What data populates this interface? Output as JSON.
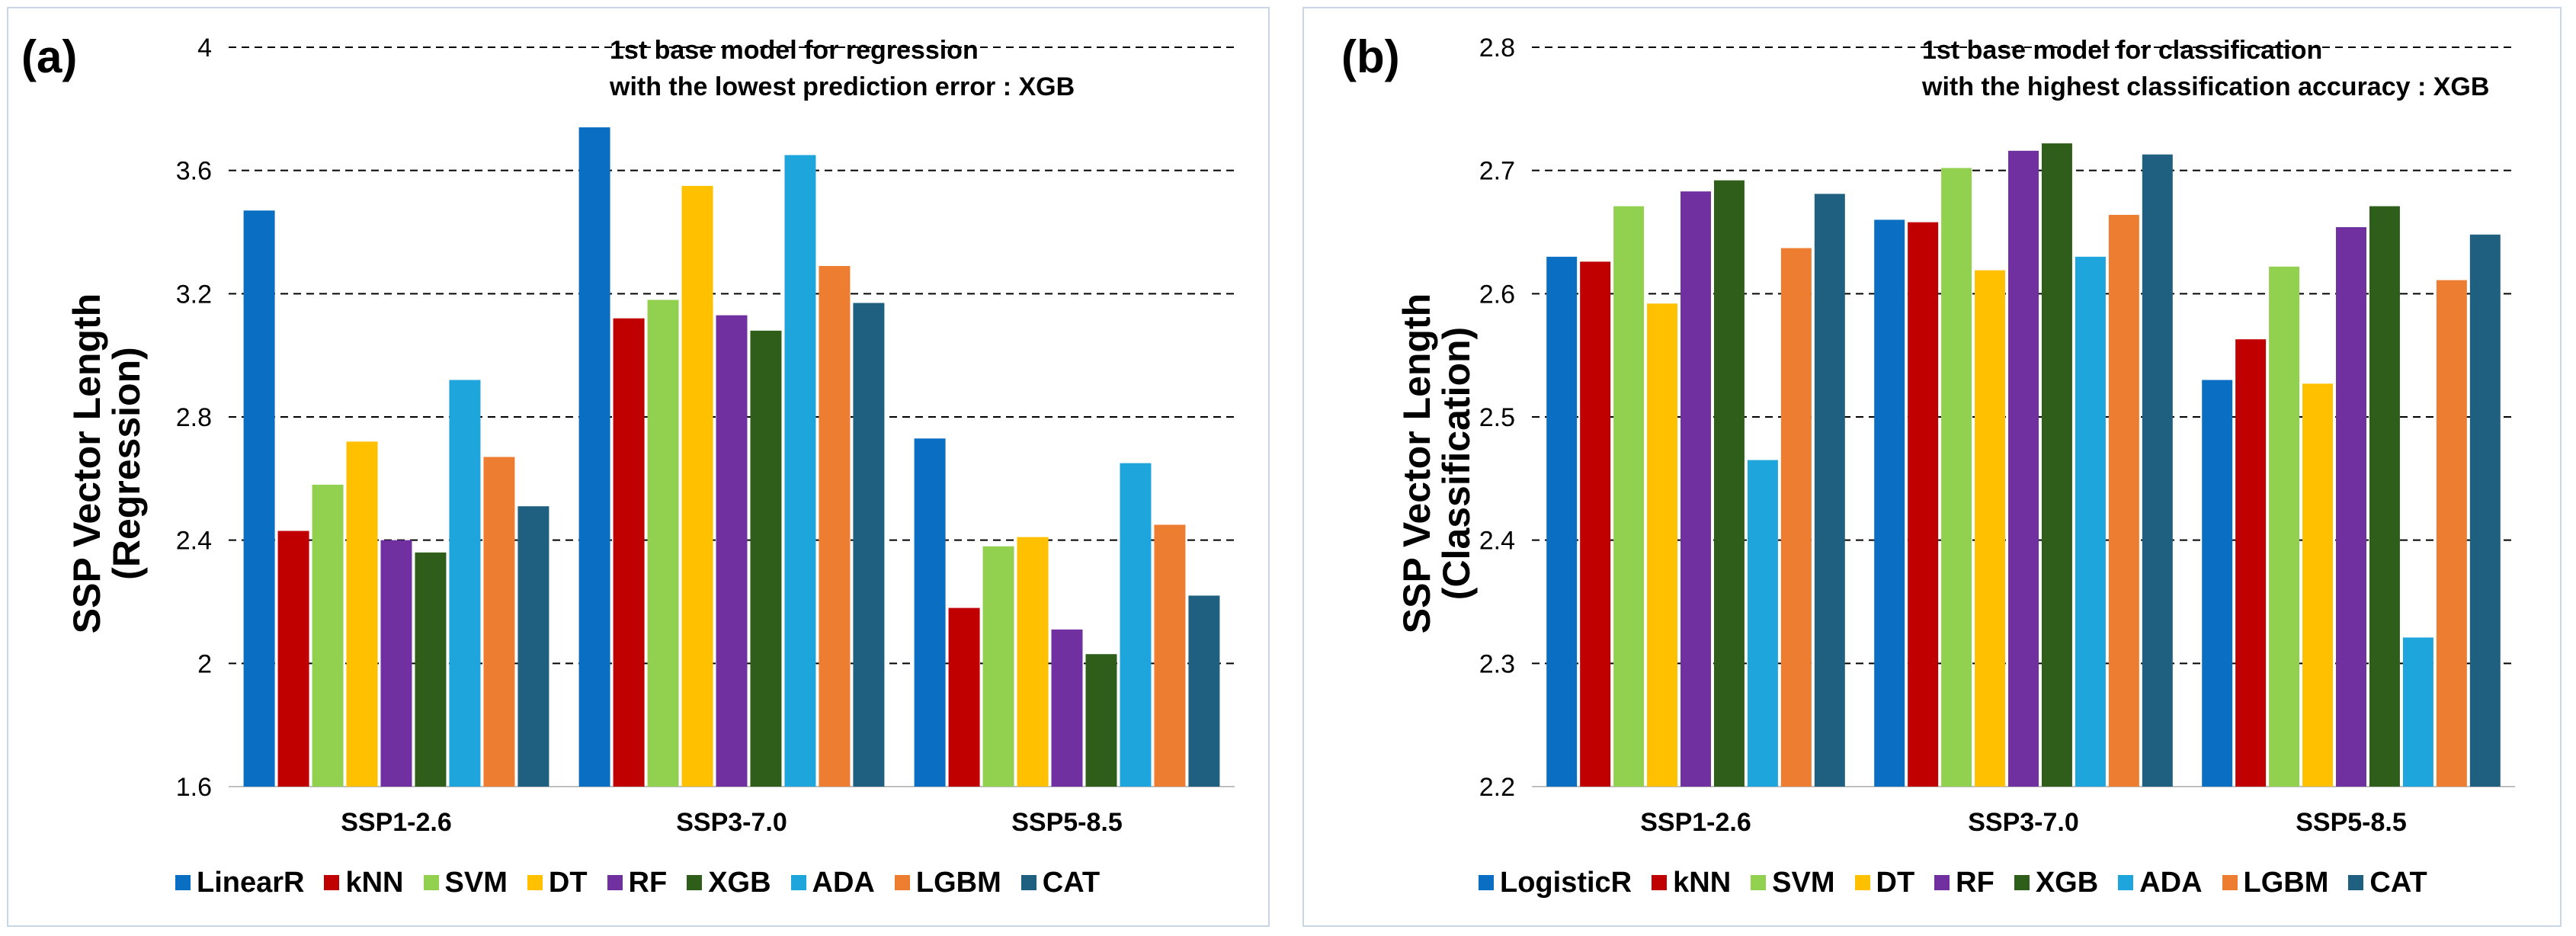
{
  "figure": {
    "panel_a": {
      "label": "(a)",
      "annotation_line1": "1st base model for regression",
      "annotation_line2": "with the lowest prediction error : XGB",
      "ylabel_line1": "SSP Vector Length",
      "ylabel_line2": "(Regression)"
    },
    "panel_b": {
      "label": "(b)",
      "annotation_line1": "1st base model for classification",
      "annotation_line2": "with the highest classification accuracy : XGB",
      "ylabel_line1": "SSP Vector Length",
      "ylabel_line2": "(Classification)"
    }
  },
  "colors": {
    "LinearR": "#0a6fc2",
    "LogisticR": "#0a6fc2",
    "kNN": "#c00000",
    "SVM": "#92d050",
    "DT": "#ffc000",
    "RF": "#7030a0",
    "XGB": "#2e5e1a",
    "ADA": "#1ea5dc",
    "LGBM": "#ed7d31",
    "CAT": "#1f5f80"
  },
  "chart_data": [
    {
      "type": "bar",
      "title": "",
      "xlabel": "",
      "ylabel": "SSP Vector Length (Regression)",
      "categories": [
        "SSP1-2.6",
        "SSP3-7.0",
        "SSP5-8.5"
      ],
      "ylim": [
        1.6,
        4.0
      ],
      "yticks": [
        1.6,
        2.0,
        2.4,
        2.8,
        3.2,
        3.6,
        4.0
      ],
      "ytick_labels": [
        "1.6",
        "2",
        "2.4",
        "2.8",
        "3.2",
        "3.6",
        "4"
      ],
      "gridlines": "dashed horizontal",
      "legend_position": "bottom",
      "series": [
        {
          "name": "LinearR",
          "values": [
            3.47,
            3.74,
            2.73
          ]
        },
        {
          "name": "kNN",
          "values": [
            2.43,
            3.12,
            2.18
          ]
        },
        {
          "name": "SVM",
          "values": [
            2.58,
            3.18,
            2.38
          ]
        },
        {
          "name": "DT",
          "values": [
            2.72,
            3.55,
            2.41
          ]
        },
        {
          "name": "RF",
          "values": [
            2.4,
            3.13,
            2.11
          ]
        },
        {
          "name": "XGB",
          "values": [
            2.36,
            3.08,
            2.03
          ]
        },
        {
          "name": "ADA",
          "values": [
            2.92,
            3.65,
            2.65
          ]
        },
        {
          "name": "LGBM",
          "values": [
            2.67,
            3.29,
            2.45
          ]
        },
        {
          "name": "CAT",
          "values": [
            2.51,
            3.17,
            2.22
          ]
        }
      ]
    },
    {
      "type": "bar",
      "title": "",
      "xlabel": "",
      "ylabel": "SSP Vector Length (Classification)",
      "categories": [
        "SSP1-2.6",
        "SSP3-7.0",
        "SSP5-8.5"
      ],
      "ylim": [
        2.2,
        2.8
      ],
      "yticks": [
        2.2,
        2.3,
        2.4,
        2.5,
        2.6,
        2.7,
        2.8
      ],
      "ytick_labels": [
        "2.2",
        "2.3",
        "2.4",
        "2.5",
        "2.6",
        "2.7",
        "2.8"
      ],
      "gridlines": "dashed horizontal",
      "legend_position": "bottom",
      "series": [
        {
          "name": "LogisticR",
          "values": [
            2.63,
            2.66,
            2.53
          ]
        },
        {
          "name": "kNN",
          "values": [
            2.626,
            2.658,
            2.563
          ]
        },
        {
          "name": "SVM",
          "values": [
            2.671,
            2.702,
            2.622
          ]
        },
        {
          "name": "DT",
          "values": [
            2.592,
            2.619,
            2.527
          ]
        },
        {
          "name": "RF",
          "values": [
            2.683,
            2.716,
            2.654
          ]
        },
        {
          "name": "XGB",
          "values": [
            2.692,
            2.722,
            2.671
          ]
        },
        {
          "name": "ADA",
          "values": [
            2.465,
            2.63,
            2.321
          ]
        },
        {
          "name": "LGBM",
          "values": [
            2.637,
            2.664,
            2.611
          ]
        },
        {
          "name": "CAT",
          "values": [
            2.681,
            2.713,
            2.648
          ]
        }
      ]
    }
  ]
}
